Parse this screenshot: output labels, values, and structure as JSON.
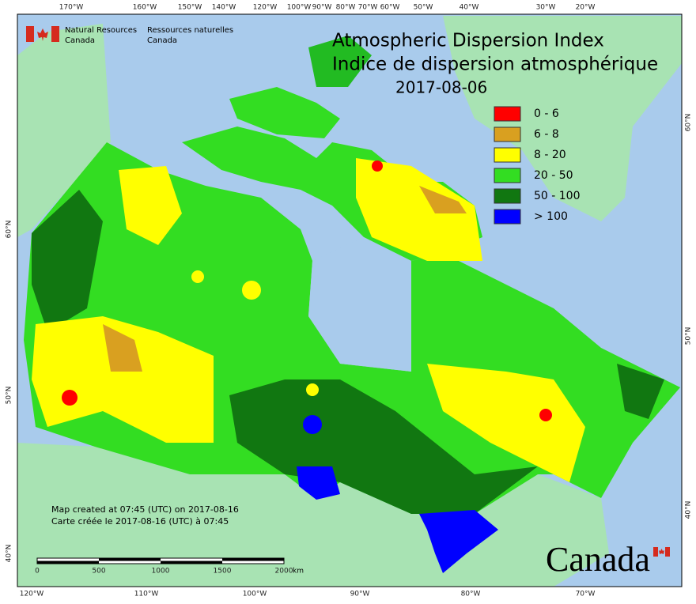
{
  "header": {
    "title": "Atmospheric Dispersion Index",
    "subtitle": "Indice de dispersion atmosphérique",
    "date": "2017-08-06"
  },
  "legend": [
    {
      "label": "0 - 6",
      "color": "#ff0000"
    },
    {
      "label": "6 - 8",
      "color": "#d9a020"
    },
    {
      "label": "8 - 20",
      "color": "#ffff00"
    },
    {
      "label": "20 - 50",
      "color": "#33dd22"
    },
    {
      "label": "50 - 100",
      "color": "#117711"
    },
    {
      "label": "> 100",
      "color": "#0000ff"
    }
  ],
  "agency": {
    "en": [
      "Natural Resources",
      "Canada"
    ],
    "fr": [
      "Ressources naturelles",
      "Canada"
    ]
  },
  "axes": {
    "top": [
      "170°W",
      "160°W",
      "150°W",
      "140°W",
      "120°W",
      "100°W",
      "90°W",
      "80°W",
      "70°W",
      "60°W",
      "50°W",
      "40°W",
      "30°W",
      "20°W"
    ],
    "bottom": [
      "120°W",
      "110°W",
      "100°W",
      "90°W",
      "80°W",
      "70°W"
    ],
    "left": [
      "60°N",
      "50°N",
      "40°N"
    ],
    "right": [
      "60°N",
      "50°N",
      "40°N"
    ]
  },
  "scale_bar": {
    "labels": [
      "0",
      "500",
      "1000",
      "1500",
      "2000"
    ],
    "unit": "km"
  },
  "footer": {
    "created_en": "Map created at 07:45 (UTC) on 2017-08-16",
    "created_fr": "Carte créée le 2017-08-16 (UTC) à 07:45"
  },
  "wordmark": "Canada"
}
